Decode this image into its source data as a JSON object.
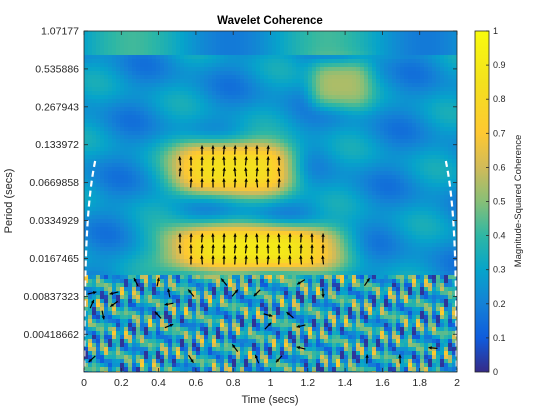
{
  "chart_data": {
    "type": "heatmap",
    "title": "Wavelet Coherence",
    "xlabel": "Time (secs)",
    "ylabel": "Period (secs)",
    "colorbar_label": "Magnitude-Squared Coherence",
    "x_ticks": [
      "0",
      "0.2",
      "0.4",
      "0.6",
      "0.8",
      "1",
      "1.2",
      "1.4",
      "1.6",
      "1.8",
      "2"
    ],
    "x_tick_values": [
      0,
      0.2,
      0.4,
      0.6,
      0.8,
      1,
      1.2,
      1.4,
      1.6,
      1.8,
      2
    ],
    "y_ticks": [
      "1.07177",
      "0.535886",
      "0.267943",
      "0.133972",
      "0.0669858",
      "0.0334929",
      "0.0167465",
      "0.00837323",
      "0.00418662"
    ],
    "y_tick_values": [
      1.07177,
      0.535886,
      0.267943,
      0.133972,
      0.0669858,
      0.0334929,
      0.0167465,
      0.00837323,
      0.00418662
    ],
    "xlim": [
      0,
      2
    ],
    "ylim": [
      0.0021,
      1.07177
    ],
    "y_scale": "log2",
    "y_reversed": true,
    "clim": [
      0,
      1
    ],
    "colorbar_ticks": [
      "0",
      "0.1",
      "0.2",
      "0.3",
      "0.4",
      "0.5",
      "0.6",
      "0.7",
      "0.8",
      "0.9",
      "1"
    ],
    "colorbar_tick_values": [
      0,
      0.1,
      0.2,
      0.3,
      0.4,
      0.5,
      0.6,
      0.7,
      0.8,
      0.9,
      1
    ],
    "colormap": "parula",
    "high_coherence_regions": [
      {
        "t_range": [
          0.45,
          1.15
        ],
        "period_range": [
          0.05,
          0.15
        ],
        "peak": 0.85,
        "phase": "in-phase (arrows up)"
      },
      {
        "t_range": [
          0.4,
          1.4
        ],
        "period_range": [
          0.0125,
          0.032
        ],
        "peak": 0.9,
        "phase": "in-phase (arrows up)"
      },
      {
        "t_range": [
          1.2,
          1.55
        ],
        "period_range": [
          0.25,
          0.65
        ],
        "peak": 0.55,
        "phase": "in-phase (arrows up)"
      }
    ],
    "cone_of_influence": "dashed white lines near both time edges"
  },
  "colors": {
    "arrow": "#000000",
    "coi": "#ffffff",
    "axes": "#262626"
  }
}
